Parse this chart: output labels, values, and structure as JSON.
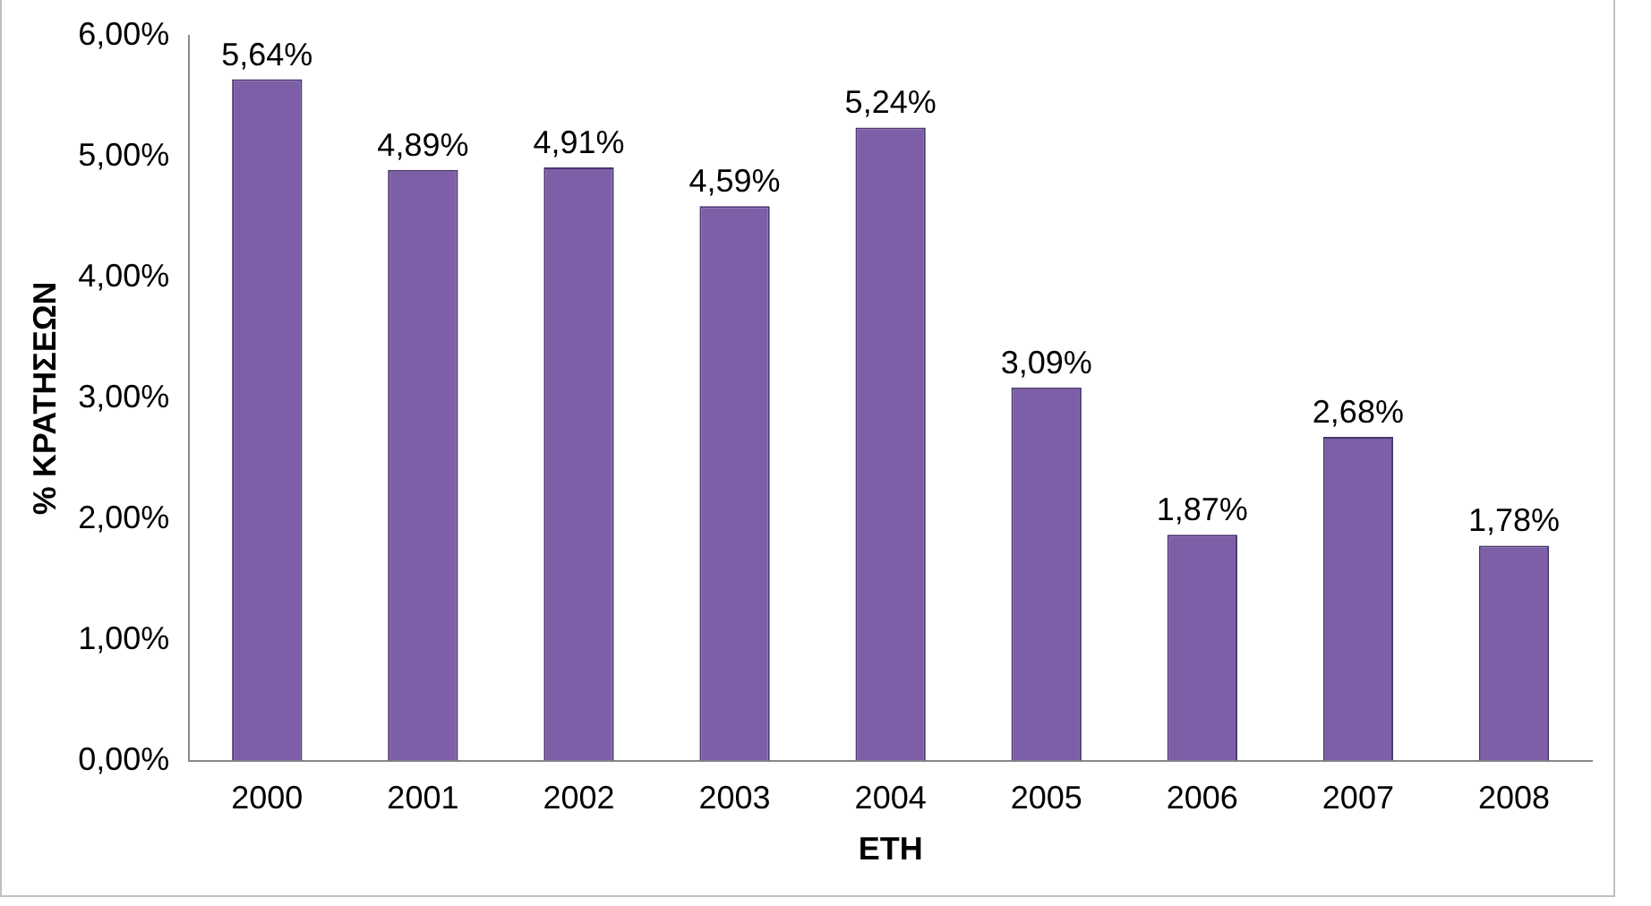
{
  "chart_data": {
    "type": "bar",
    "xlabel": "ΕΤΗ",
    "ylabel": "% ΚΡΑΤΗΣΕΩΝ",
    "categories": [
      "2000",
      "2001",
      "2002",
      "2003",
      "2004",
      "2005",
      "2006",
      "2007",
      "2008"
    ],
    "values": [
      5.64,
      4.89,
      4.91,
      4.59,
      5.24,
      3.09,
      1.87,
      2.68,
      1.78
    ],
    "value_labels": [
      "5,64%",
      "4,89%",
      "4,91%",
      "4,59%",
      "5,24%",
      "3,09%",
      "1,87%",
      "2,68%",
      "1,78%"
    ],
    "color": "#7d5fa8",
    "ylim": [
      0,
      6
    ],
    "yticks": [
      {
        "value": 0,
        "label": "0,00%"
      },
      {
        "value": 1,
        "label": "1,00%"
      },
      {
        "value": 2,
        "label": "2,00%"
      },
      {
        "value": 3,
        "label": "3,00%"
      },
      {
        "value": 4,
        "label": "4,00%"
      },
      {
        "value": 5,
        "label": "5,00%"
      },
      {
        "value": 6,
        "label": "6,00%"
      }
    ],
    "grid": false,
    "legend": false
  }
}
